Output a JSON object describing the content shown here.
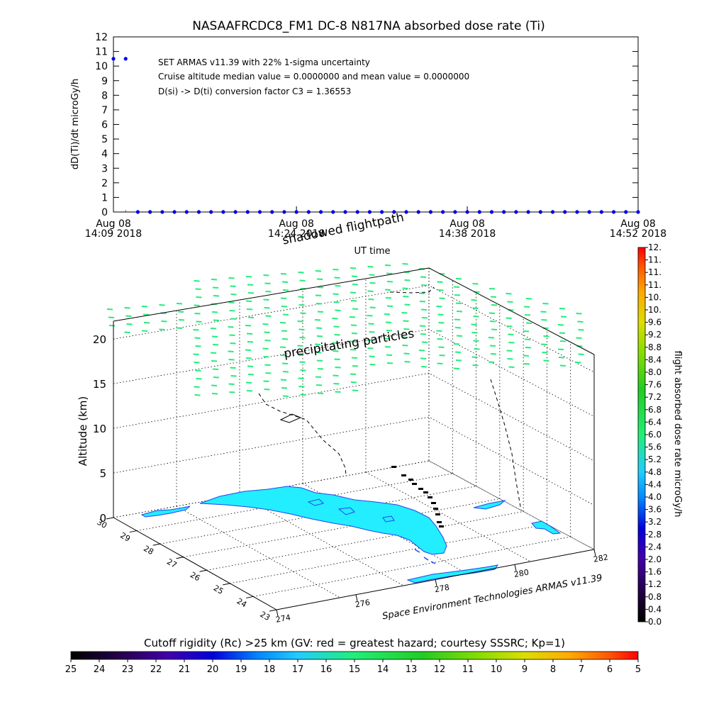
{
  "chart_data": [
    {
      "type": "scatter",
      "title": "NASAAFRCDC8_FM1 DC-8   N817NA absorbed dose rate (Ti)",
      "ylabel": "dD(Ti)/dt microGy/h",
      "xlabel": "UT time",
      "ylim": [
        0,
        12
      ],
      "y_ticks": [
        "0",
        "1",
        "2",
        "3",
        "4",
        "5",
        "6",
        "7",
        "8",
        "9",
        "10",
        "11",
        "12"
      ],
      "x_ticks": [
        {
          "date": "Aug 08",
          "time": "14:09 2018"
        },
        {
          "date": "Aug 08",
          "time": "14:24 2018"
        },
        {
          "date": "Aug 08",
          "time": "14:38 2018"
        },
        {
          "date": "Aug 08",
          "time": "14:52 2018"
        }
      ],
      "annotations": [
        "SET ARMAS v11.39 with 22% 1-sigma uncertainty",
        "Cruise altitude median value = 0.0000000 and mean value = 0.0000000",
        "D(si) -> D(ti) conversion factor C3 = 1.36553"
      ],
      "series": [
        {
          "color": "#0000ee",
          "points": [
            {
              "t": "14:09",
              "y": 10.5
            },
            {
              "t": "14:10",
              "y": 10.5
            },
            {
              "t": "14:11",
              "y": 0
            },
            {
              "t": "14:12",
              "y": 0
            },
            {
              "t": "14:13",
              "y": 0
            },
            {
              "t": "14:14",
              "y": 0
            },
            {
              "t": "14:15",
              "y": 0
            },
            {
              "t": "14:16",
              "y": 0
            },
            {
              "t": "14:17",
              "y": 0
            },
            {
              "t": "14:18",
              "y": 0
            },
            {
              "t": "14:19",
              "y": 0
            },
            {
              "t": "14:20",
              "y": 0
            },
            {
              "t": "14:21",
              "y": 0
            },
            {
              "t": "14:22",
              "y": 0
            },
            {
              "t": "14:23",
              "y": 0
            },
            {
              "t": "14:24",
              "y": 0
            },
            {
              "t": "14:25",
              "y": 0
            },
            {
              "t": "14:26",
              "y": 0
            },
            {
              "t": "14:27",
              "y": 0
            },
            {
              "t": "14:28",
              "y": 0
            },
            {
              "t": "14:29",
              "y": 0
            },
            {
              "t": "14:30",
              "y": 0
            },
            {
              "t": "14:31",
              "y": 0
            },
            {
              "t": "14:32",
              "y": 0
            },
            {
              "t": "14:33",
              "y": 0
            },
            {
              "t": "14:34",
              "y": 0
            },
            {
              "t": "14:35",
              "y": 0
            },
            {
              "t": "14:36",
              "y": 0
            },
            {
              "t": "14:37",
              "y": 0
            },
            {
              "t": "14:38",
              "y": 0
            },
            {
              "t": "14:39",
              "y": 0
            },
            {
              "t": "14:40",
              "y": 0
            },
            {
              "t": "14:41",
              "y": 0
            },
            {
              "t": "14:42",
              "y": 0
            },
            {
              "t": "14:43",
              "y": 0
            },
            {
              "t": "14:44",
              "y": 0
            },
            {
              "t": "14:45",
              "y": 0
            },
            {
              "t": "14:46",
              "y": 0
            },
            {
              "t": "14:47",
              "y": 0
            },
            {
              "t": "14:48",
              "y": 0
            },
            {
              "t": "14:49",
              "y": 0
            },
            {
              "t": "14:50",
              "y": 0
            },
            {
              "t": "14:51",
              "y": 0
            },
            {
              "t": "14:52",
              "y": 0
            }
          ]
        }
      ]
    },
    {
      "type": "scatter",
      "labels": {
        "shadowed": "shadowed flightpath",
        "precipitating": "precipitating particles",
        "credit": "Space Environment Technologies ARMAS v11.39"
      },
      "zlabel": "Altitude (km)",
      "z_ticks": [
        "0",
        "5",
        "10",
        "15",
        "20"
      ],
      "lat_ticks": [
        "30",
        "29",
        "28",
        "27",
        "26",
        "25",
        "24",
        "23"
      ],
      "lon_ticks": [
        "274",
        "276",
        "278",
        "280",
        "282"
      ],
      "particle_color": "#22ee77",
      "land_color": "#22eeff",
      "coast_color": "#2244ee",
      "flight_color": "#000000"
    },
    {
      "type": "heatmap",
      "orientation": "vertical",
      "label": "flight absorbed dose rate microGy/h",
      "ticks": [
        "0.0",
        "0.4",
        "0.8",
        "1.2",
        "1.6",
        "2.0",
        "2.4",
        "2.8",
        "3.2",
        "3.6",
        "4.0",
        "4.4",
        "4.8",
        "5.2",
        "5.6",
        "6.0",
        "6.4",
        "6.8",
        "7.2",
        "7.6",
        "8.0",
        "8.4",
        "8.8",
        "9.2",
        "9.6",
        "10.",
        "10.",
        "11.",
        "11.",
        "11.",
        "12."
      ]
    },
    {
      "type": "heatmap",
      "orientation": "horizontal",
      "title": "Cutoff rigidity (Rc) >25 km (GV: red = greatest hazard; courtesy SSSRC; Kp=1)",
      "ticks": [
        "25",
        "24",
        "23",
        "22",
        "21",
        "20",
        "19",
        "18",
        "17",
        "16",
        "15",
        "14",
        "13",
        "12",
        "11",
        "10",
        "9",
        "8",
        "7",
        "6",
        "5"
      ]
    }
  ]
}
